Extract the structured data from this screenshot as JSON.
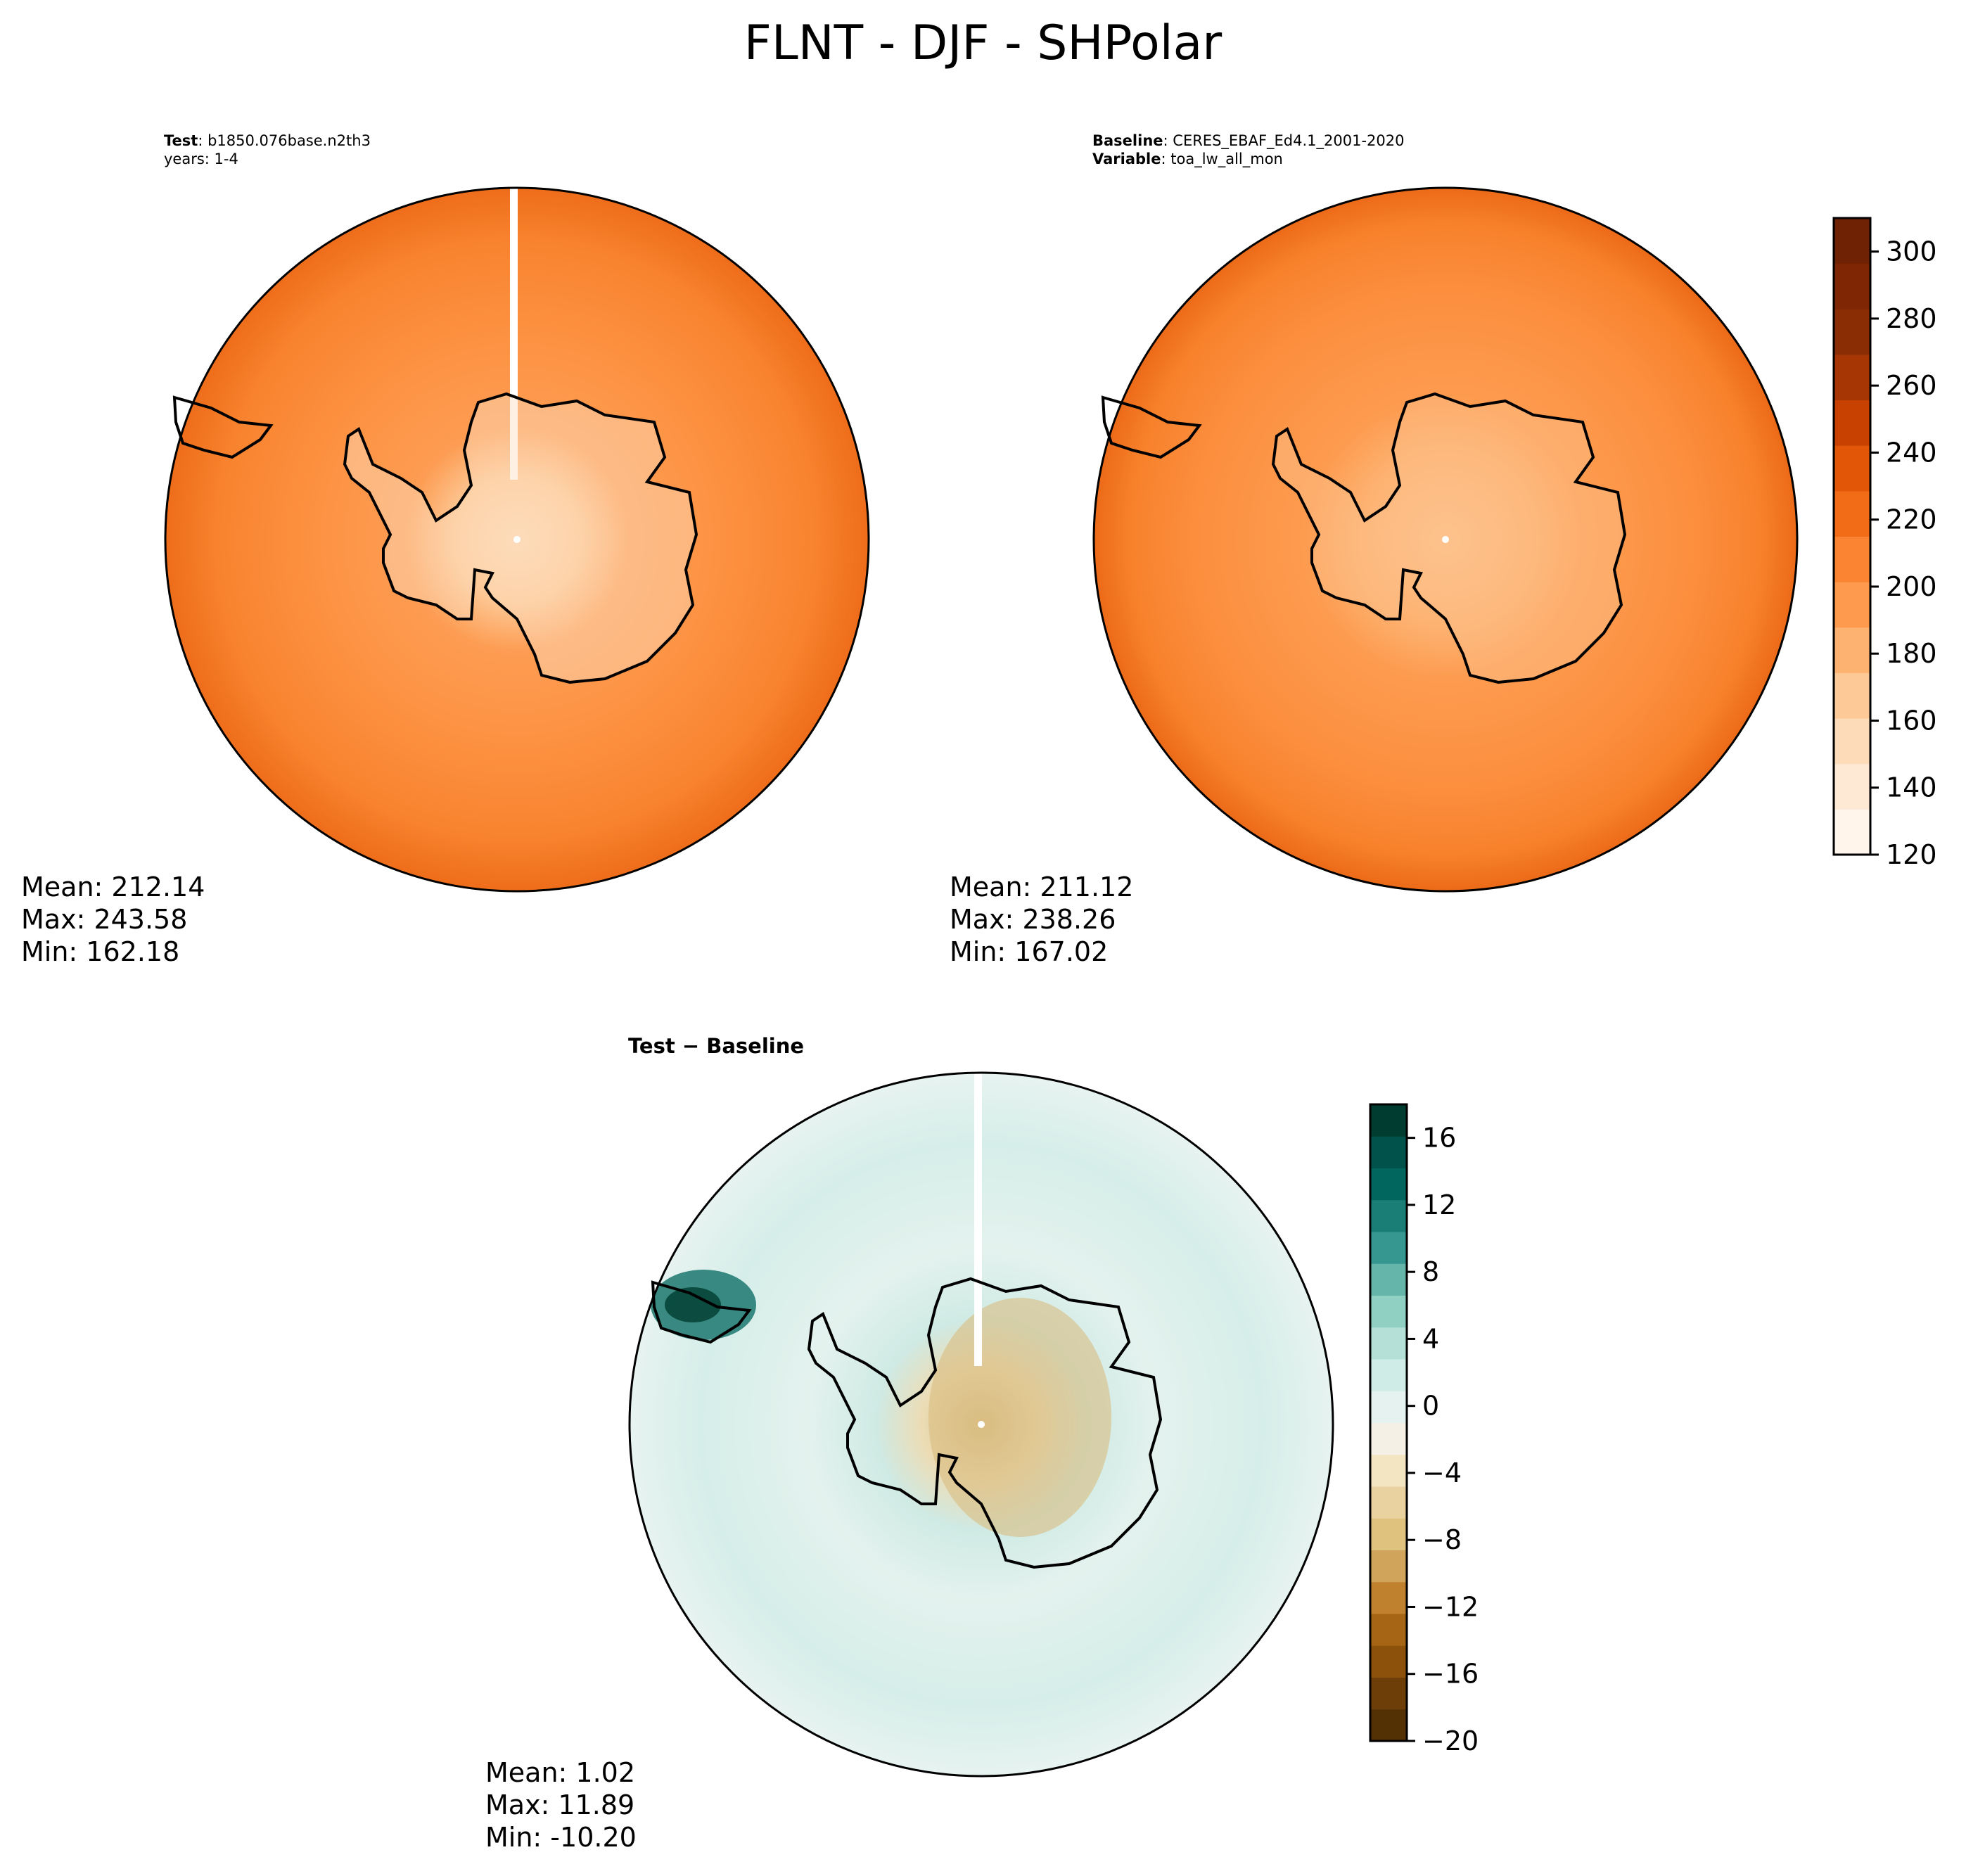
{
  "title": "FLNT - DJF - SHPolar",
  "panels": {
    "test": {
      "label": "Test",
      "name": "b1850.076base.n2th3",
      "years": "years: 1-4",
      "stats": {
        "mean": "Mean: 212.14",
        "max": "Max: 243.58",
        "min": "Min: 162.18"
      }
    },
    "baseline": {
      "label": "Baseline",
      "name": "CERES_EBAF_Ed4.1_2001-2020",
      "variable_label": "Variable",
      "variable": "toa_lw_all_mon",
      "stats": {
        "mean": "Mean: 211.12",
        "max": "Max: 238.26",
        "min": "Min: 167.02"
      }
    },
    "diff": {
      "title": "Test − Baseline",
      "stats": {
        "mean": "Mean:  1.02",
        "max": "Max: 11.89",
        "min": "Min: -10.20"
      }
    }
  },
  "chart_data": [
    {
      "type": "heatmap",
      "panel": "test",
      "projection": "south-polar stereographic",
      "mean": 212.14,
      "max": 243.58,
      "min": 162.18,
      "colormap": "Oranges",
      "clim": [
        120,
        310
      ]
    },
    {
      "type": "heatmap",
      "panel": "baseline",
      "projection": "south-polar stereographic",
      "mean": 211.12,
      "max": 238.26,
      "min": 167.02,
      "colormap": "Oranges",
      "clim": [
        120,
        310
      ],
      "colorbar": {
        "ticks": [
          120,
          140,
          160,
          180,
          200,
          220,
          240,
          260,
          280,
          300
        ],
        "tick_labels": [
          "120",
          "140",
          "160",
          "180",
          "200",
          "220",
          "240",
          "260",
          "280",
          "300"
        ],
        "colors": [
          "#fff5eb",
          "#fee9d4",
          "#fddbb8",
          "#fdc997",
          "#fdb272",
          "#fd9a4e",
          "#fa8431",
          "#f26c17",
          "#e25608",
          "#c94101",
          "#a63603",
          "#8a2d04",
          "#7f2704",
          "#6f2204"
        ]
      }
    },
    {
      "type": "heatmap",
      "panel": "diff",
      "projection": "south-polar stereographic",
      "mean": 1.02,
      "max": 11.89,
      "min": -10.2,
      "colormap": "BrBG",
      "clim": [
        -20,
        18
      ],
      "colorbar": {
        "ticks": [
          -20,
          -16,
          -12,
          -8,
          -4,
          0,
          4,
          8,
          12,
          16
        ],
        "tick_labels": [
          "−20",
          "−16",
          "−12",
          "−8",
          "−4",
          "0",
          "4",
          "8",
          "12",
          "16"
        ],
        "colors": [
          "#543005",
          "#6d3e07",
          "#8c510a",
          "#a66515",
          "#bf812d",
          "#d0a45a",
          "#dfc27d",
          "#ead2a0",
          "#f3e4c2",
          "#f5f0e5",
          "#e6f2ef",
          "#d0ece7",
          "#b4e0d8",
          "#8fd0c3",
          "#65b5aa",
          "#35978f",
          "#1a7e76",
          "#01665e",
          "#01524a",
          "#003c30"
        ]
      }
    }
  ]
}
